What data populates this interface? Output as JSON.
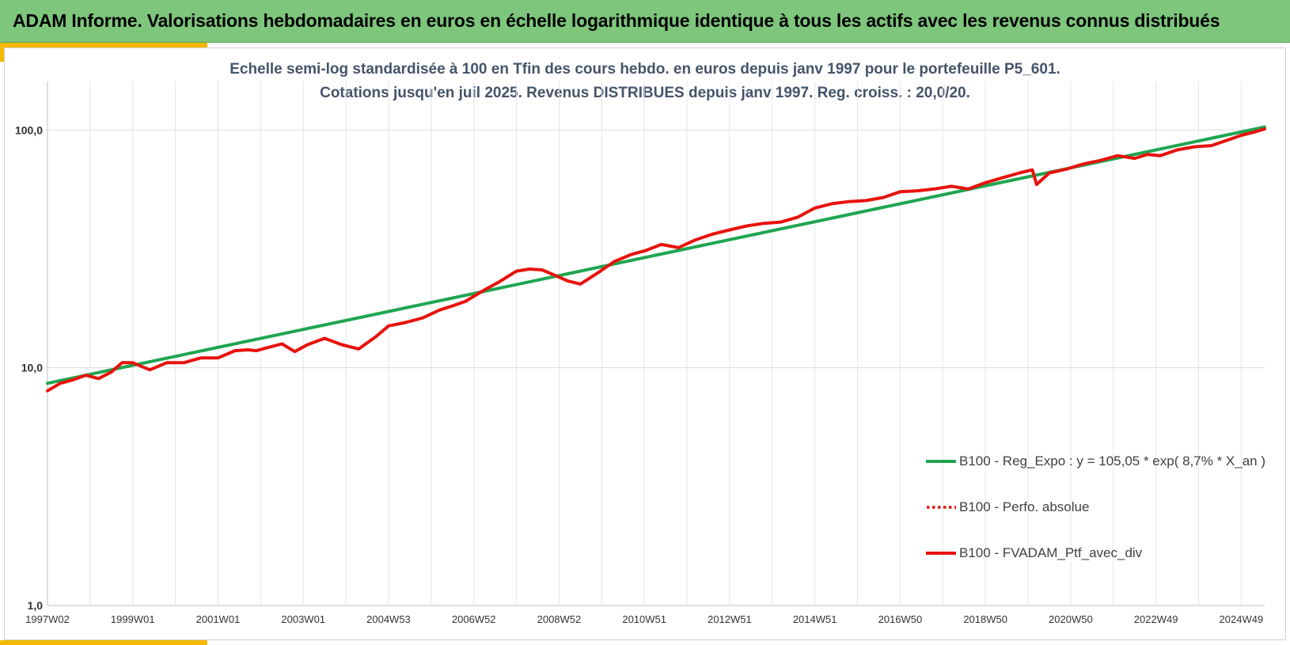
{
  "header": {
    "title": "ADAM Informe. Valorisations hebdomadaires en euros en échelle logarithmique identique à tous les actifs avec les revenus connus distribués"
  },
  "chart_data": {
    "type": "line",
    "subtitle_line1": "Echelle semi-log standardisée  à 100 en Tfin des cours hebdo.  en euros depuis janv 1997 pour le portefeuille P5_601.",
    "subtitle_line2": "Cotations  jusqu'en juil 2025. Revenus DISTRIBUES depuis janv 1997. Reg. croiss. : 20,0/20.",
    "y_scale": "log",
    "ylim": [
      1,
      160
    ],
    "yticks": [
      {
        "value": 1,
        "label": "1,0"
      },
      {
        "value": 10,
        "label": "10,0"
      },
      {
        "value": 100,
        "label": "100,0"
      }
    ],
    "xlim": [
      1997.0,
      2025.55
    ],
    "xticks": [
      {
        "value": 1997.0,
        "label": "1997W02"
      },
      {
        "value": 1999.0,
        "label": "1999W01"
      },
      {
        "value": 2001.0,
        "label": "2001W01"
      },
      {
        "value": 2003.0,
        "label": "2003W01"
      },
      {
        "value": 2005.0,
        "label": "2004W53"
      },
      {
        "value": 2007.0,
        "label": "2006W52"
      },
      {
        "value": 2009.0,
        "label": "2008W52"
      },
      {
        "value": 2011.0,
        "label": "2010W51"
      },
      {
        "value": 2013.0,
        "label": "2012W51"
      },
      {
        "value": 2015.0,
        "label": "2014W51"
      },
      {
        "value": 2017.0,
        "label": "2016W50"
      },
      {
        "value": 2019.0,
        "label": "2018W50"
      },
      {
        "value": 2021.0,
        "label": "2020W50"
      },
      {
        "value": 2023.0,
        "label": "2022W49"
      },
      {
        "value": 2025.0,
        "label": "2024W49"
      }
    ],
    "grid": true,
    "legend_position": "bottom-right",
    "series": [
      {
        "name": "B100 - Reg_Expo : y = 105,05 * exp( 8,7% *  X_an )",
        "style": "solid",
        "color": "#1fa550",
        "x": [
          1997.0,
          2025.55
        ],
        "y": [
          8.6,
          103.0
        ]
      },
      {
        "name": "B100 - Perfo. absolue",
        "style": "dotted",
        "color": "#e8120c",
        "x": [],
        "y": []
      },
      {
        "name": "B100 - FVADAM_Ptf_avec_div",
        "style": "solid",
        "color": "#e8120c",
        "x": [
          1997.0,
          1997.3,
          1997.6,
          1997.9,
          1998.2,
          1998.5,
          1998.75,
          1999.0,
          1999.4,
          1999.8,
          2000.2,
          2000.6,
          2001.0,
          2001.4,
          2001.7,
          2001.9,
          2002.2,
          2002.5,
          2002.8,
          2003.1,
          2003.5,
          2003.9,
          2004.3,
          2004.7,
          2005.0,
          2005.4,
          2005.8,
          2006.2,
          2006.5,
          2006.8,
          2007.2,
          2007.6,
          2008.0,
          2008.3,
          2008.6,
          2008.9,
          2009.2,
          2009.5,
          2009.9,
          2010.3,
          2010.7,
          2011.0,
          2011.4,
          2011.8,
          2012.2,
          2012.6,
          2013.0,
          2013.4,
          2013.8,
          2014.2,
          2014.6,
          2015.0,
          2015.4,
          2015.8,
          2016.2,
          2016.6,
          2017.0,
          2017.4,
          2017.8,
          2018.2,
          2018.6,
          2019.0,
          2019.4,
          2019.8,
          2020.1,
          2020.2,
          2020.5,
          2020.9,
          2021.3,
          2021.7,
          2022.1,
          2022.5,
          2022.8,
          2023.1,
          2023.5,
          2023.9,
          2024.3,
          2024.7,
          2025.0,
          2025.3,
          2025.55
        ],
        "y": [
          8.0,
          8.6,
          8.9,
          9.3,
          9.0,
          9.6,
          10.5,
          10.5,
          9.8,
          10.5,
          10.5,
          11.0,
          11.0,
          11.8,
          11.9,
          11.8,
          12.2,
          12.6,
          11.7,
          12.5,
          13.3,
          12.5,
          12.0,
          13.5,
          15.0,
          15.5,
          16.2,
          17.5,
          18.2,
          19.0,
          21.0,
          23.0,
          25.5,
          26.0,
          25.8,
          24.5,
          23.2,
          22.5,
          25.0,
          28.0,
          30.0,
          31.0,
          33.0,
          32.0,
          34.5,
          36.5,
          38.0,
          39.5,
          40.5,
          41.0,
          43.0,
          47.0,
          49.0,
          50.0,
          50.5,
          52.0,
          55.0,
          55.5,
          56.5,
          58.0,
          56.5,
          60.0,
          63.0,
          66.0,
          68.0,
          59.0,
          66.0,
          68.5,
          72.0,
          74.5,
          78.0,
          76.0,
          79.0,
          78.0,
          82.5,
          85.0,
          86.0,
          91.0,
          95.0,
          98.0,
          101.0
        ]
      }
    ]
  }
}
